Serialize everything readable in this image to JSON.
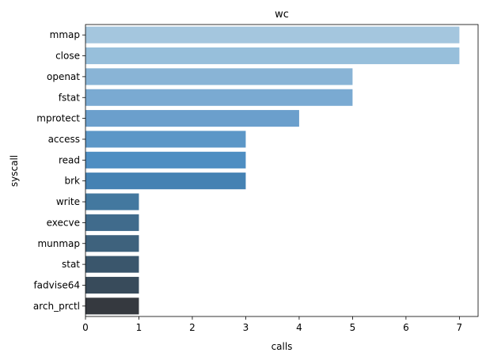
{
  "chart_data": {
    "type": "bar",
    "orientation": "horizontal",
    "title": "wc",
    "xlabel": "calls",
    "ylabel": "syscall",
    "categories": [
      "mmap",
      "close",
      "openat",
      "fstat",
      "mprotect",
      "access",
      "read",
      "brk",
      "write",
      "execve",
      "munmap",
      "stat",
      "fadvise64",
      "arch_prctl"
    ],
    "values": [
      7,
      7,
      5,
      5,
      4,
      3,
      3,
      3,
      1,
      1,
      1,
      1,
      1,
      1
    ],
    "xlim": [
      0,
      7.35
    ],
    "xticks": [
      0,
      1,
      2,
      3,
      4,
      5,
      6,
      7
    ],
    "grid": false,
    "legend": "none",
    "colors": [
      "#a4c6de",
      "#97bfdb",
      "#89b4d6",
      "#7aaad2",
      "#6b9fcc",
      "#5c97c7",
      "#4e8ec2",
      "#4582b3",
      "#43789f",
      "#406b8c",
      "#3e627d",
      "#3a566c",
      "#384b5b",
      "#35393f"
    ]
  }
}
